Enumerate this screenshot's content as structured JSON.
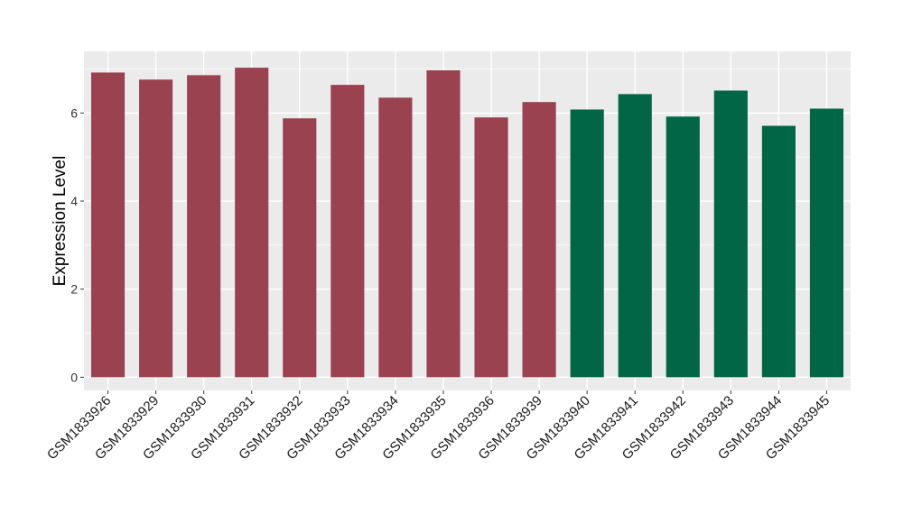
{
  "chart_data": {
    "type": "bar",
    "title": "",
    "xlabel": "",
    "ylabel": "Expression Level",
    "ylim": [
      -0.3,
      7.4
    ],
    "yticks": [
      0,
      2,
      4,
      6
    ],
    "grid": true,
    "categories": [
      "GSM1833926",
      "GSM1833929",
      "GSM1833930",
      "GSM1833931",
      "GSM1833932",
      "GSM1833933",
      "GSM1833934",
      "GSM1833935",
      "GSM1833936",
      "GSM1833939",
      "GSM1833940",
      "GSM1833941",
      "GSM1833942",
      "GSM1833943",
      "GSM1833944",
      "GSM1833945"
    ],
    "values": [
      6.92,
      6.76,
      6.86,
      7.03,
      5.88,
      6.64,
      6.35,
      6.97,
      5.9,
      6.25,
      6.08,
      6.43,
      5.92,
      6.51,
      5.71,
      6.1
    ],
    "bar_colors": [
      "#9b4250",
      "#9b4250",
      "#9b4250",
      "#9b4250",
      "#9b4250",
      "#9b4250",
      "#9b4250",
      "#9b4250",
      "#9b4250",
      "#9b4250",
      "#006646",
      "#006646",
      "#006646",
      "#006646",
      "#006646",
      "#006646"
    ],
    "panel_background": "#ebebeb"
  }
}
